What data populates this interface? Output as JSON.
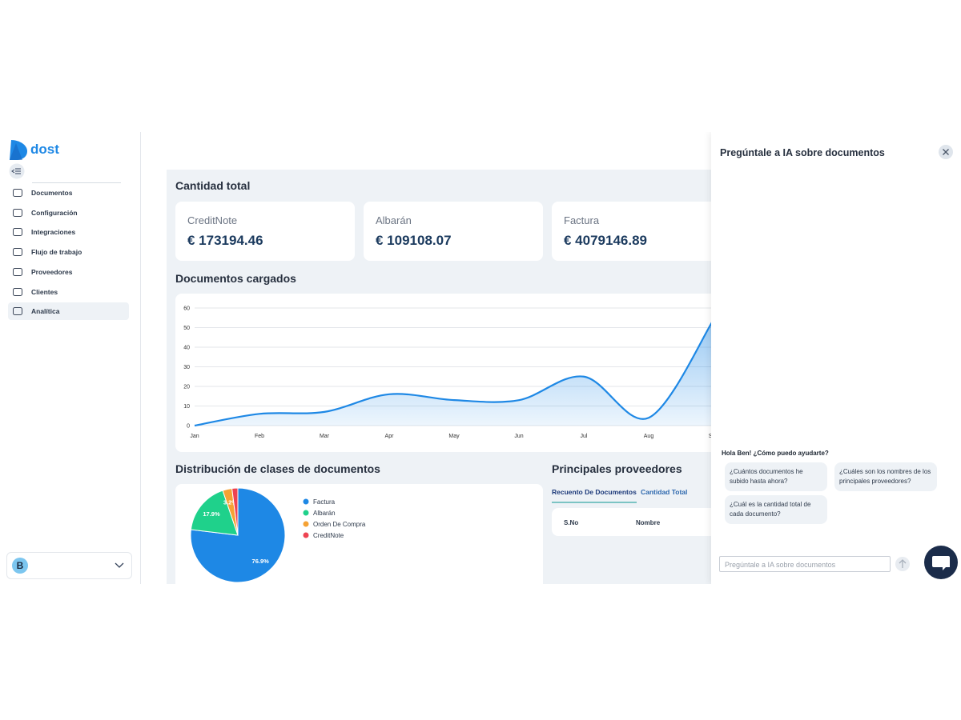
{
  "sidebar": {
    "logo": "dost",
    "nav": [
      "Documentos",
      "Configuración",
      "Integraciones",
      "Flujo de trabajo",
      "Proveedores",
      "Clientes",
      "Analítica"
    ],
    "active": 6,
    "user_initial": "B"
  },
  "summary": {
    "title": "Cantidad total",
    "cards": [
      {
        "label": "CreditNote",
        "value": "€ 173194.46"
      },
      {
        "label": "Albarán",
        "value": "€ 109108.07"
      },
      {
        "label": "Factura",
        "value": "€ 4079146.89"
      }
    ]
  },
  "chart_data": [
    {
      "type": "line",
      "title": "Documentos cargados",
      "categories": [
        "Jan",
        "Feb",
        "Mar",
        "Apr",
        "May",
        "Jun",
        "Jul",
        "Aug",
        "Sep"
      ],
      "values": [
        0,
        6,
        7,
        16,
        13,
        13,
        25,
        4,
        54
      ],
      "color": "#1e88e5",
      "area": true,
      "ylim": [
        0,
        60
      ],
      "yticks": [
        0,
        10,
        20,
        30,
        40,
        50,
        60
      ],
      "grid": true
    },
    {
      "type": "pie",
      "title": "Distribución de clases de documentos",
      "categories": [
        "Factura",
        "Albarán",
        "Orden De Compra",
        "CreditNote"
      ],
      "values": [
        76.9,
        17.9,
        3.2,
        2.0
      ],
      "value_labels": [
        "76.9%",
        "17.9%",
        "3.2%",
        null
      ],
      "colors": [
        "#1e88e5",
        "#1fd18b",
        "#f5a234",
        "#ee4452"
      ],
      "legend": "right"
    }
  ],
  "suppliers": {
    "title": "Principales proveedores",
    "tabs": [
      "Recuento De Documentos",
      "Cantidad Total"
    ],
    "active_tab": 0,
    "columns": [
      "S.No",
      "Nombre"
    ]
  },
  "assistant": {
    "title": "Pregúntale a IA sobre documentos",
    "greeting": "Hola Ben! ¿Cómo puedo ayudarte?",
    "suggestions": [
      "¿Cuántos documentos he subido hasta ahora?",
      "¿Cuáles son los nombres de los principales proveedores?",
      "¿Cuál es la cantidad total de cada documento?"
    ],
    "input_placeholder": "Pregúntale a IA sobre documentos"
  }
}
